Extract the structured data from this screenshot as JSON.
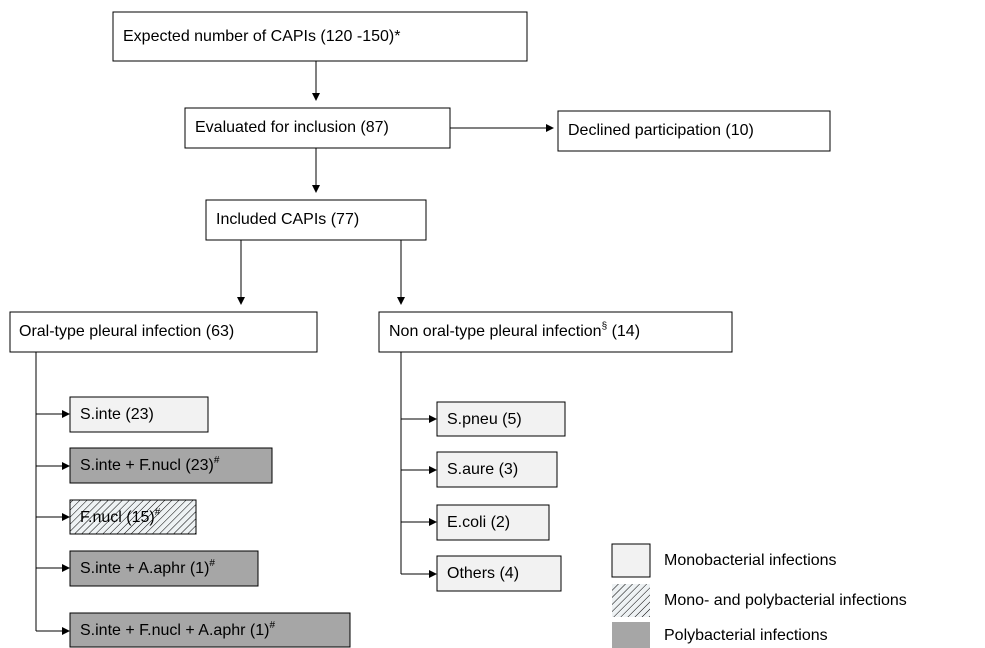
{
  "nodes": [
    {
      "label": "Expected number of CAPIs (120  -150)*"
    },
    {
      "label": "Evaluated for inclusion (87)"
    },
    {
      "label": "Declined participation (10)"
    },
    {
      "label": "Included CAPIs (77)"
    },
    {
      "label": "Oral-type pleural infection (63)"
    },
    {
      "label": "Non oral-type pleural infection",
      "sup": "§",
      "rest": " (14)"
    },
    {
      "label": "S.inte (23)"
    },
    {
      "label": "S.inte + F.nucl (23)",
      "sup": "#"
    },
    {
      "label": "F.nucl (15)",
      "sup": "#"
    },
    {
      "label": "S.inte + A.aphr (1)",
      "sup": "#"
    },
    {
      "label": "S.inte + F.nucl + A.aphr (1)",
      "sup": "#"
    },
    {
      "label": "S.pneu (5)"
    },
    {
      "label": "S.aure (3)"
    },
    {
      "label": "E.coli (2)"
    },
    {
      "label": "Others (4)"
    }
  ],
  "legend": [
    {
      "label": "Monobacterial infections"
    },
    {
      "label": "Mono- and polybacterial infections"
    },
    {
      "label": "Polybacterial infections"
    }
  ]
}
